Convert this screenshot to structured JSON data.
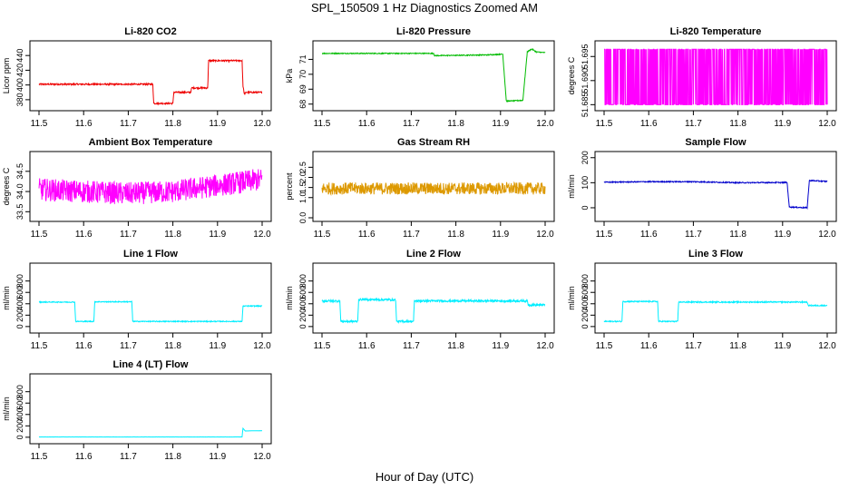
{
  "figure": {
    "title": "SPL_150509  1 Hz Diagnostics Zoomed AM",
    "xlabel": "Hour of Day (UTC)"
  },
  "chart_data": [
    {
      "type": "line",
      "title": "Li-820 CO2",
      "ylabel": "Licor ppm",
      "color": "#ee0000",
      "xlim": [
        11.5,
        12.0
      ],
      "ylim": [
        370,
        455
      ],
      "xticks": [
        "11.5",
        "11.6",
        "11.7",
        "11.8",
        "11.9",
        "12.0"
      ],
      "yticks": [
        {
          "v": 380,
          "label": "380"
        },
        {
          "v": 400,
          "label": "400"
        },
        {
          "v": 420,
          "label": "420"
        },
        {
          "v": 440,
          "label": "440"
        }
      ],
      "series": [
        {
          "noise": 1,
          "points": [
            [
              11.5,
              401
            ],
            [
              11.755,
              401
            ],
            [
              11.757,
              375
            ],
            [
              11.8,
              375
            ],
            [
              11.802,
              390
            ],
            [
              11.84,
              390
            ],
            [
              11.842,
              396
            ],
            [
              11.878,
              396
            ],
            [
              11.88,
              433
            ],
            [
              11.955,
              433
            ],
            [
              11.957,
              399
            ],
            [
              11.96,
              388
            ],
            [
              11.965,
              390
            ],
            [
              12.0,
              390
            ]
          ]
        }
      ]
    },
    {
      "type": "line",
      "title": "Li-820 Pressure",
      "ylabel": "kPa",
      "color": "#00bb00",
      "xlim": [
        11.5,
        12.0
      ],
      "ylim": [
        67.8,
        72.0
      ],
      "xticks": [
        "11.5",
        "11.6",
        "11.7",
        "11.8",
        "11.9",
        "12.0"
      ],
      "yticks": [
        {
          "v": 68,
          "label": "68"
        },
        {
          "v": 69,
          "label": "69"
        },
        {
          "v": 70,
          "label": "70"
        },
        {
          "v": 71,
          "label": "71"
        }
      ],
      "series": [
        {
          "noise": 0.03,
          "points": [
            [
              11.5,
              71.4
            ],
            [
              11.75,
              71.4
            ],
            [
              11.752,
              71.25
            ],
            [
              11.87,
              71.3
            ],
            [
              11.905,
              71.35
            ],
            [
              11.913,
              68.2
            ],
            [
              11.95,
              68.25
            ],
            [
              11.96,
              71.5
            ],
            [
              11.97,
              71.7
            ],
            [
              11.98,
              71.5
            ],
            [
              12.0,
              71.45
            ]
          ]
        }
      ]
    },
    {
      "type": "line",
      "title": "Li-820 Temperature",
      "ylabel": "degrees C",
      "color": "#ff00ff",
      "xlim": [
        11.5,
        12.0
      ],
      "ylim": [
        51.6845,
        51.6975
      ],
      "xticks": [
        "11.5",
        "11.6",
        "11.7",
        "11.8",
        "11.9",
        "12.0"
      ],
      "yticks": [
        {
          "v": 51.685,
          "label": "51.685"
        },
        {
          "v": 51.69,
          "label": "51.690"
        },
        {
          "v": 51.695,
          "label": "51.695"
        }
      ],
      "series": [
        {
          "noise": 0,
          "toggle": [
            51.685,
            51.6965
          ],
          "points": [
            [
              11.5,
              51.685
            ],
            [
              12.0,
              51.685
            ]
          ]
        }
      ]
    },
    {
      "type": "line",
      "title": "Ambient Box Temperature",
      "ylabel": "degrees C",
      "color": "#ff00ff",
      "xlim": [
        11.5,
        12.0
      ],
      "ylim": [
        33.35,
        34.9
      ],
      "xticks": [
        "11.5",
        "11.6",
        "11.7",
        "11.8",
        "11.9",
        "12.0"
      ],
      "yticks": [
        {
          "v": 33.5,
          "label": "33.5"
        },
        {
          "v": 34.0,
          "label": "34.0"
        },
        {
          "v": 34.5,
          "label": "34.5"
        }
      ],
      "series": [
        {
          "noise": 0.28,
          "points": [
            [
              11.5,
              34.05
            ],
            [
              11.6,
              34.0
            ],
            [
              11.7,
              33.95
            ],
            [
              11.8,
              34.0
            ],
            [
              11.9,
              34.15
            ],
            [
              12.0,
              34.3
            ]
          ]
        }
      ]
    },
    {
      "type": "line",
      "title": "Gas Stream RH",
      "ylabel": "percent",
      "color": "#dd9900",
      "xlim": [
        11.5,
        12.0
      ],
      "ylim": [
        0,
        3.1
      ],
      "xticks": [
        "11.5",
        "11.6",
        "11.7",
        "11.8",
        "11.9",
        "12.0"
      ],
      "yticks": [
        {
          "v": 0.0,
          "label": "0.0"
        },
        {
          "v": 1.0,
          "label": "1.0"
        },
        {
          "v": 1.5,
          "label": "1.5"
        },
        {
          "v": 2.0,
          "label": "2.0"
        },
        {
          "v": 2.5,
          "label": "2.5"
        }
      ],
      "series": [
        {
          "noise": 0.3,
          "points": [
            [
              11.5,
              1.45
            ],
            [
              12.0,
              1.45
            ]
          ]
        }
      ]
    },
    {
      "type": "line",
      "title": "Sample Flow",
      "ylabel": "ml/min",
      "color": "#0000cc",
      "xlim": [
        11.5,
        12.0
      ],
      "ylim": [
        -40,
        210
      ],
      "xticks": [
        "11.5",
        "11.6",
        "11.7",
        "11.8",
        "11.9",
        "12.0"
      ],
      "yticks": [
        {
          "v": 0,
          "label": "0"
        },
        {
          "v": 100,
          "label": "100"
        },
        {
          "v": 200,
          "label": "200"
        }
      ],
      "series": [
        {
          "noise": 2,
          "points": [
            [
              11.5,
              102
            ],
            [
              11.6,
              104
            ],
            [
              11.7,
              104
            ],
            [
              11.8,
              100
            ],
            [
              11.91,
              101
            ],
            [
              11.915,
              3
            ],
            [
              11.955,
              0
            ],
            [
              11.96,
              109
            ],
            [
              12.0,
              105
            ]
          ]
        }
      ]
    },
    {
      "type": "line",
      "title": "Line 1 Flow",
      "ylabel": "ml/min",
      "color": "#00eeff",
      "xlim": [
        11.5,
        12.0
      ],
      "ylim": [
        -50,
        1050
      ],
      "xticks": [
        "11.5",
        "11.6",
        "11.7",
        "11.8",
        "11.9",
        "12.0"
      ],
      "yticks": [
        {
          "v": 0,
          "label": "0"
        },
        {
          "v": 200,
          "label": "200"
        },
        {
          "v": 400,
          "label": "400"
        },
        {
          "v": 600,
          "label": "600"
        },
        {
          "v": 800,
          "label": "800"
        }
      ],
      "series": [
        {
          "noise": 8,
          "points": [
            [
              11.5,
              430
            ],
            [
              11.58,
              430
            ],
            [
              11.582,
              90
            ],
            [
              11.623,
              90
            ],
            [
              11.625,
              435
            ],
            [
              11.708,
              435
            ],
            [
              11.71,
              90
            ],
            [
              11.955,
              90
            ],
            [
              11.957,
              360
            ],
            [
              12.0,
              360
            ]
          ]
        }
      ]
    },
    {
      "type": "line",
      "title": "Line 2 Flow",
      "ylabel": "ml/min",
      "color": "#00eeff",
      "xlim": [
        11.5,
        12.0
      ],
      "ylim": [
        -50,
        1050
      ],
      "xticks": [
        "11.5",
        "11.6",
        "11.7",
        "11.8",
        "11.9",
        "12.0"
      ],
      "yticks": [
        {
          "v": 0,
          "label": "0"
        },
        {
          "v": 200,
          "label": "200"
        },
        {
          "v": 400,
          "label": "400"
        },
        {
          "v": 600,
          "label": "600"
        },
        {
          "v": 800,
          "label": "800"
        }
      ],
      "series": [
        {
          "noise": 18,
          "points": [
            [
              11.5,
              450
            ],
            [
              11.54,
              450
            ],
            [
              11.542,
              90
            ],
            [
              11.58,
              90
            ],
            [
              11.582,
              475
            ],
            [
              11.665,
              470
            ],
            [
              11.667,
              90
            ],
            [
              11.705,
              90
            ],
            [
              11.707,
              450
            ],
            [
              11.96,
              450
            ],
            [
              11.962,
              380
            ],
            [
              12.0,
              380
            ]
          ]
        }
      ]
    },
    {
      "type": "line",
      "title": "Line 3 Flow",
      "ylabel": "ml/min",
      "color": "#00eeff",
      "xlim": [
        11.5,
        12.0
      ],
      "ylim": [
        -50,
        1050
      ],
      "xticks": [
        "11.5",
        "11.6",
        "11.7",
        "11.8",
        "11.9",
        "12.0"
      ],
      "yticks": [
        {
          "v": 0,
          "label": "0"
        },
        {
          "v": 200,
          "label": "200"
        },
        {
          "v": 400,
          "label": "400"
        },
        {
          "v": 600,
          "label": "600"
        },
        {
          "v": 800,
          "label": "800"
        }
      ],
      "series": [
        {
          "noise": 10,
          "points": [
            [
              11.5,
              90
            ],
            [
              11.54,
              90
            ],
            [
              11.542,
              440
            ],
            [
              11.62,
              440
            ],
            [
              11.622,
              90
            ],
            [
              11.665,
              90
            ],
            [
              11.667,
              430
            ],
            [
              11.955,
              430
            ],
            [
              11.957,
              370
            ],
            [
              12.0,
              370
            ]
          ]
        }
      ]
    },
    {
      "type": "line",
      "title": "Line 4 (LT) Flow",
      "ylabel": "ml/min",
      "color": "#00eeff",
      "xlim": [
        11.5,
        12.0
      ],
      "ylim": [
        -50,
        1050
      ],
      "xticks": [
        "11.5",
        "11.6",
        "11.7",
        "11.8",
        "11.9",
        "12.0"
      ],
      "yticks": [
        {
          "v": 0,
          "label": "0"
        },
        {
          "v": 200,
          "label": "200"
        },
        {
          "v": 400,
          "label": "400"
        },
        {
          "v": 600,
          "label": "600"
        },
        {
          "v": 800,
          "label": "800"
        }
      ],
      "series": [
        {
          "noise": 1,
          "points": [
            [
              11.5,
              5
            ],
            [
              11.955,
              5
            ],
            [
              11.957,
              160
            ],
            [
              11.962,
              110
            ],
            [
              12.0,
              115
            ]
          ]
        }
      ]
    }
  ]
}
